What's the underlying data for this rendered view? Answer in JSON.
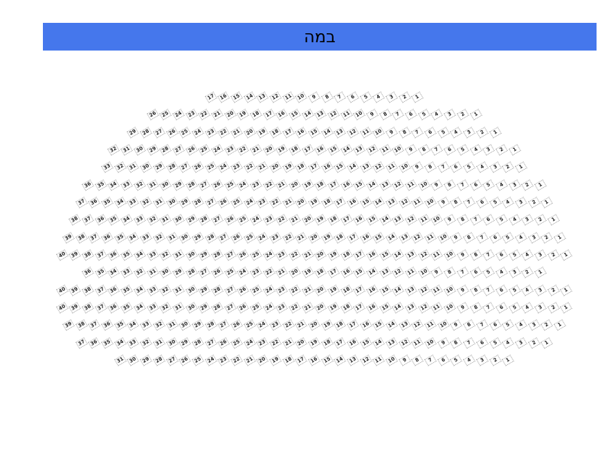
{
  "stage": {
    "label": "במה",
    "color": "#4577ec"
  },
  "seating": {
    "numbering": "right-to-left",
    "rows": [
      {
        "seats": 17
      },
      {
        "seats": 26
      },
      {
        "seats": 29
      },
      {
        "seats": 32
      },
      {
        "seats": 33
      },
      {
        "seats": 36
      },
      {
        "seats": 37
      },
      {
        "seats": 38
      },
      {
        "seats": 39
      },
      {
        "seats": 40
      },
      {
        "seats": 36
      },
      {
        "seats": 40
      },
      {
        "seats": 40
      },
      {
        "seats": 39
      },
      {
        "seats": 37
      },
      {
        "seats": 31
      }
    ]
  }
}
